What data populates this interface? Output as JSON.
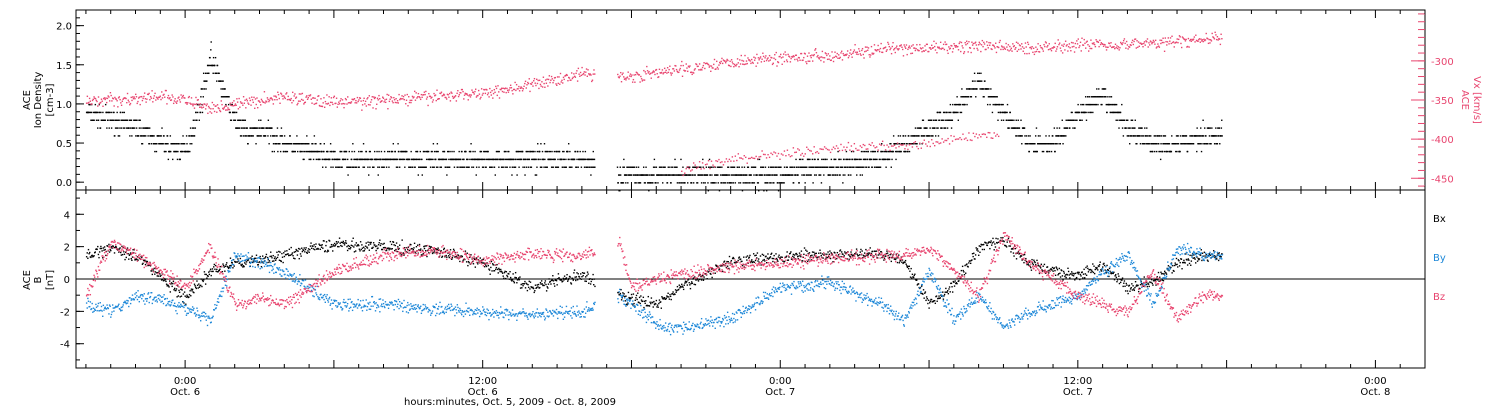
{
  "colors": {
    "axis": "#000000",
    "black": "#000000",
    "magenta": "#e8456f",
    "blue": "#1e88d8"
  },
  "time_axis": {
    "ticks": [
      {
        "t": 6,
        "time": "0:00",
        "date": "Oct. 6"
      },
      {
        "t": 18,
        "time": "12:00",
        "date": "Oct. 6"
      },
      {
        "t": 30,
        "time": "0:00",
        "date": "Oct. 7"
      },
      {
        "t": 42,
        "time": "12:00",
        "date": "Oct. 7"
      },
      {
        "t": 54,
        "time": "0:00",
        "date": "Oct. 8"
      }
    ],
    "label": "hours:minutes, Oct.  5, 2009 - Oct.  8, 2009",
    "xlim_hours_from_oct5": [
      1.6,
      56.0
    ]
  },
  "chart_data": [
    {
      "type": "scatter",
      "panel": "top",
      "ylabel_left": [
        "ACE",
        "Ion Density",
        "[cm-3]"
      ],
      "ylabel_right": [
        "ACE",
        "Vx [km/s]"
      ],
      "ylim_left": [
        -0.1,
        2.2
      ],
      "ylim_right": [
        -465,
        -235
      ],
      "ticks_left": [
        "0.0",
        "0.5",
        "1.0",
        "1.5",
        "2.0"
      ],
      "ticks_right": [
        "-300",
        "-350",
        "-400",
        "-450"
      ],
      "data_gap_hours": [
        22.5,
        23.4
      ],
      "data_end_hours": 47.8,
      "series": [
        {
          "key": "density",
          "axis": "left",
          "color": "black",
          "x": [
            2,
            4,
            5,
            6,
            6.5,
            7,
            7.5,
            8,
            8.5,
            9,
            10,
            12,
            14,
            16,
            18,
            20,
            22,
            23.5,
            26,
            28,
            30,
            32,
            34,
            35,
            36,
            37,
            38,
            39,
            40,
            41,
            42,
            43,
            44,
            45,
            46,
            47
          ],
          "values": [
            0.9,
            0.7,
            0.5,
            0.4,
            0.9,
            1.6,
            1.2,
            0.8,
            0.6,
            0.7,
            0.5,
            0.3,
            0.3,
            0.3,
            0.3,
            0.3,
            0.3,
            0.1,
            0.1,
            0.1,
            0.1,
            0.2,
            0.3,
            0.5,
            0.7,
            0.9,
            1.3,
            0.9,
            0.5,
            0.5,
            0.9,
            1.1,
            0.7,
            0.5,
            0.5,
            0.6
          ]
        },
        {
          "key": "vx",
          "axis": "right",
          "color": "magenta",
          "x": [
            2,
            4,
            5,
            6,
            7,
            9,
            10,
            12,
            14,
            16,
            18,
            20,
            22,
            23.5,
            25,
            26,
            28,
            30,
            32,
            34,
            36,
            38,
            40,
            42,
            44,
            46,
            47.5
          ],
          "values": [
            -350,
            -348,
            -345,
            -350,
            -360,
            -350,
            -345,
            -352,
            -350,
            -345,
            -340,
            -330,
            -315,
            -320,
            -315,
            -310,
            -300,
            -295,
            -292,
            -285,
            -283,
            -280,
            -283,
            -278,
            -278,
            -275,
            -270
          ]
        },
        {
          "key": "vx_secondary",
          "axis": "right",
          "color": "magenta",
          "x": [
            26,
            28,
            30,
            32,
            34,
            36,
            38
          ],
          "values": [
            -440,
            -425,
            -418,
            -412,
            -408,
            -405,
            -395
          ]
        }
      ]
    },
    {
      "type": "scatter",
      "panel": "bottom",
      "ylabel_left": [
        "ACE",
        "B",
        "[nT]"
      ],
      "ylim": [
        -5.5,
        5.5
      ],
      "ticks": [
        "4",
        "2",
        "0",
        "-2",
        "-4"
      ],
      "zero_line": true,
      "data_gap_hours": [
        22.5,
        23.4
      ],
      "data_end_hours": 47.8,
      "series": [
        {
          "name": "Bx",
          "color": "black",
          "x": [
            2,
            3,
            4,
            5,
            6,
            7,
            8,
            9,
            10,
            12,
            14,
            16,
            18,
            20,
            22,
            23.5,
            24,
            25,
            26,
            28,
            30,
            32,
            34,
            35,
            36,
            37,
            38,
            39,
            40,
            41,
            42,
            43,
            44,
            45,
            46,
            47
          ],
          "values": [
            1.5,
            2.0,
            1.5,
            0.2,
            -1.2,
            0.5,
            1.0,
            1.2,
            1.5,
            2.2,
            2.0,
            1.8,
            1.0,
            -0.5,
            0.3,
            -1.0,
            -1.2,
            -1.5,
            -0.5,
            1.2,
            1.4,
            1.5,
            1.6,
            1.2,
            -1.5,
            -0.3,
            2.0,
            2.4,
            1.0,
            0.5,
            0.3,
            0.8,
            -0.5,
            -0.2,
            1.0,
            1.5
          ]
        },
        {
          "name": "By",
          "color": "blue",
          "x": [
            2,
            3,
            4,
            5,
            6,
            7,
            8,
            9,
            10,
            12,
            14,
            16,
            18,
            20,
            22,
            23.5,
            24,
            25,
            26,
            28,
            30,
            32,
            34,
            35,
            36,
            37,
            38,
            39,
            40,
            41,
            42,
            43,
            44,
            45,
            46,
            47
          ],
          "values": [
            -1.5,
            -2.0,
            -1.0,
            -1.2,
            -1.8,
            -2.5,
            1.5,
            1.0,
            0.5,
            -1.5,
            -1.5,
            -1.8,
            -2.0,
            -2.2,
            -2.0,
            -1.0,
            -1.5,
            -2.8,
            -3.0,
            -2.4,
            -0.5,
            -0.2,
            -1.5,
            -2.5,
            0.5,
            -2.5,
            -1.0,
            -3.0,
            -2.0,
            -1.5,
            -1.0,
            0.5,
            1.5,
            -1.5,
            2.0,
            1.5
          ]
        },
        {
          "name": "Bz",
          "color": "magenta",
          "x": [
            2,
            3,
            4,
            5,
            6,
            7,
            8,
            9,
            10,
            12,
            14,
            16,
            18,
            20,
            22,
            23.5,
            24,
            25,
            26,
            28,
            30,
            32,
            34,
            35,
            36,
            37,
            38,
            39,
            40,
            41,
            42,
            43,
            44,
            45,
            46,
            47
          ],
          "values": [
            -1.0,
            2.3,
            1.5,
            0.5,
            -0.5,
            2.0,
            -1.5,
            -1.2,
            -1.5,
            0.5,
            1.5,
            1.8,
            1.2,
            1.6,
            1.5,
            2.3,
            -0.5,
            0.0,
            0.3,
            0.8,
            1.0,
            1.3,
            1.5,
            1.5,
            2.0,
            0.5,
            -1.0,
            2.8,
            1.0,
            0.0,
            -1.0,
            -1.5,
            -2.0,
            0.5,
            -2.5,
            -1.0
          ]
        }
      ]
    }
  ]
}
